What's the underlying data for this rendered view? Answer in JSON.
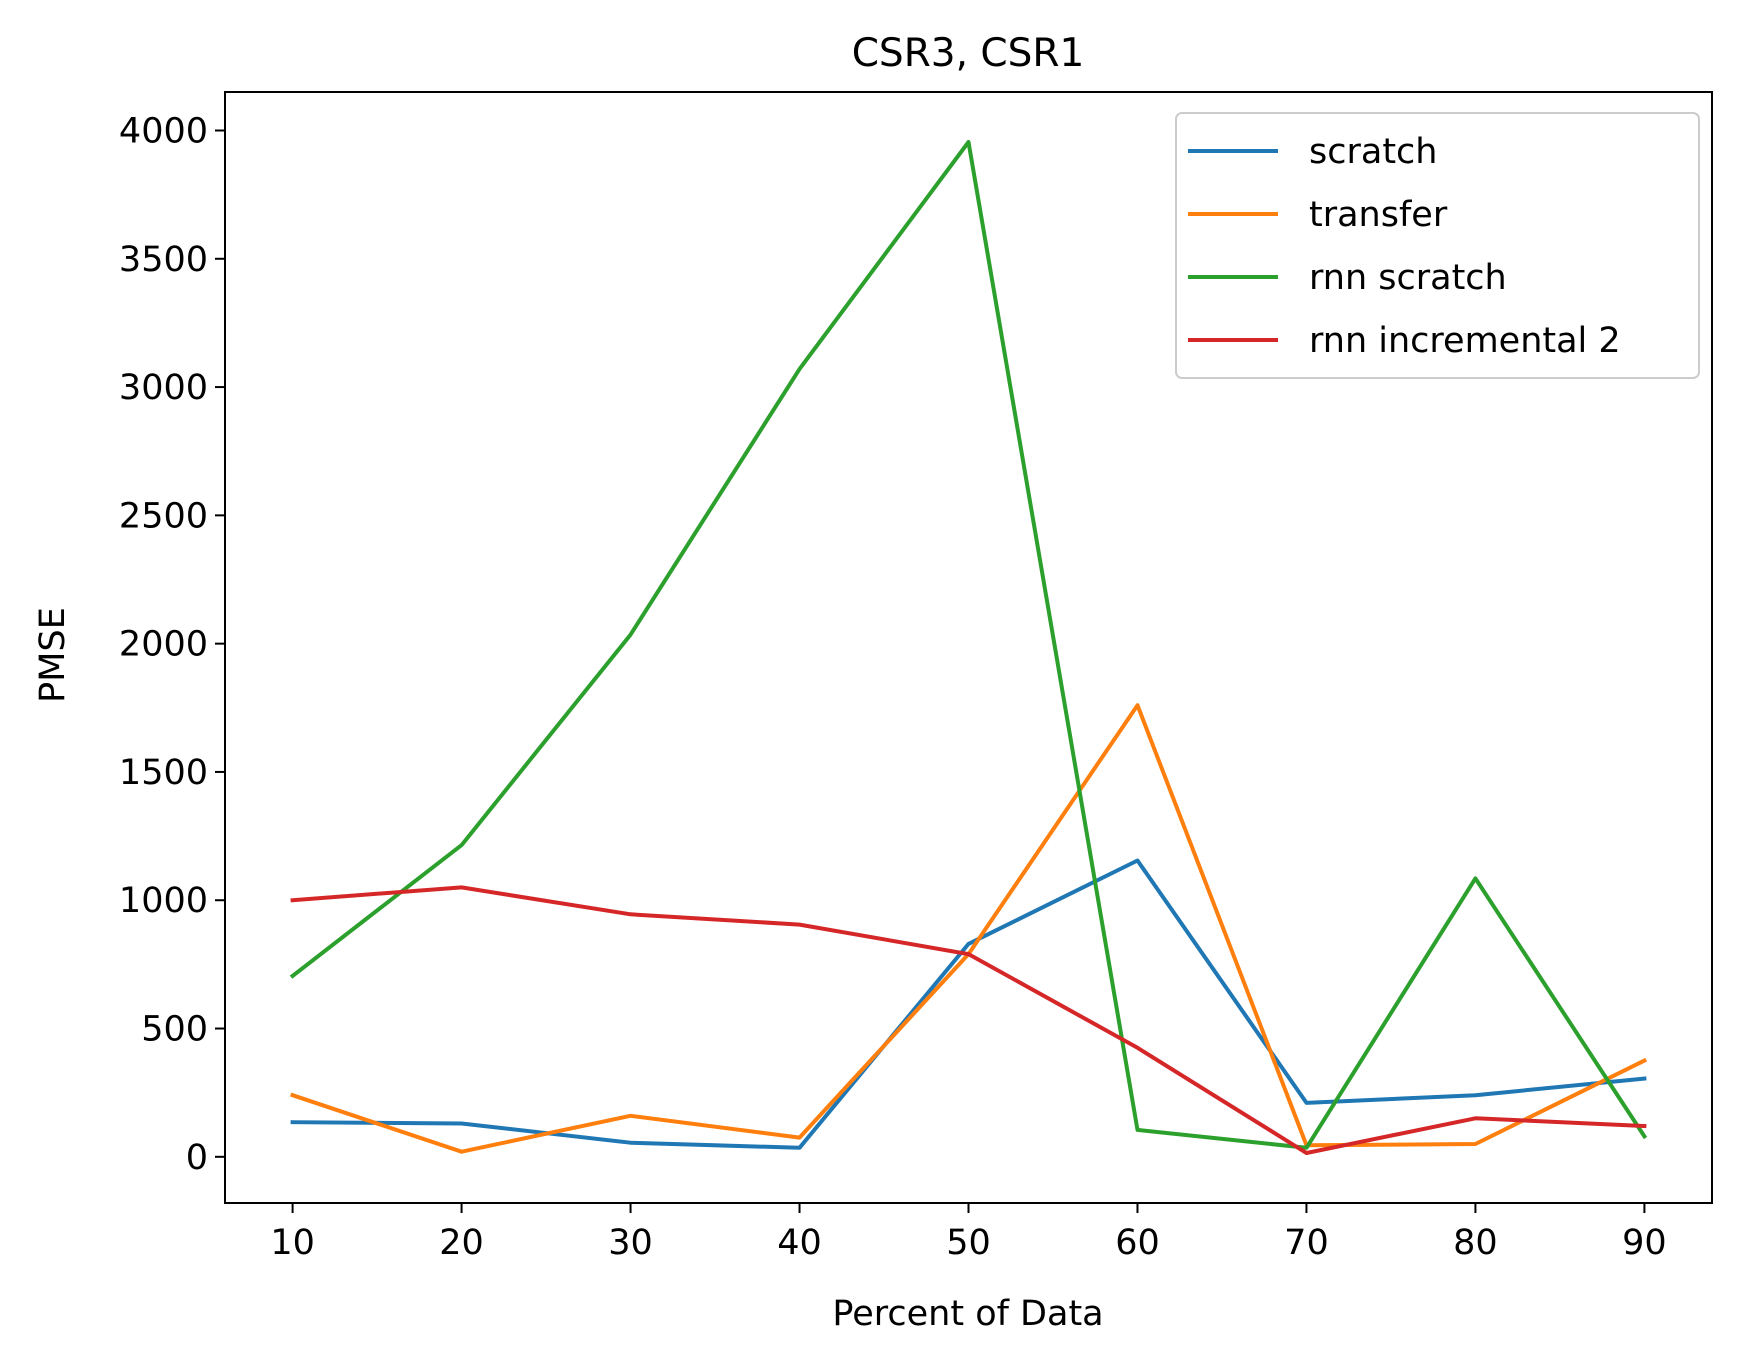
{
  "chart_data": {
    "type": "line",
    "title": "CSR3, CSR1",
    "xlabel": "Percent of Data",
    "ylabel": "PMSE",
    "x": [
      10,
      20,
      30,
      40,
      50,
      60,
      70,
      80,
      90
    ],
    "xlim": [
      6,
      94
    ],
    "ylim": [
      -180,
      4150
    ],
    "xticks": [
      10,
      20,
      30,
      40,
      50,
      60,
      70,
      80,
      90
    ],
    "yticks": [
      0,
      500,
      1000,
      1500,
      2000,
      2500,
      3000,
      3500,
      4000
    ],
    "grid": false,
    "legend_position": "top-right",
    "series": [
      {
        "name": "scratch",
        "color": "#1f77b4",
        "values": [
          135,
          130,
          55,
          35,
          830,
          1155,
          210,
          240,
          305
        ]
      },
      {
        "name": "transfer",
        "color": "#ff7f0e",
        "values": [
          240,
          20,
          160,
          75,
          790,
          1760,
          45,
          50,
          375
        ]
      },
      {
        "name": "rnn scratch",
        "color": "#2ca02c",
        "values": [
          705,
          1215,
          2035,
          3070,
          3955,
          105,
          35,
          1085,
          80
        ]
      },
      {
        "name": "rnn incremental 2",
        "color": "#d62728",
        "values": [
          1000,
          1050,
          945,
          905,
          790,
          425,
          15,
          150,
          120
        ]
      }
    ]
  }
}
